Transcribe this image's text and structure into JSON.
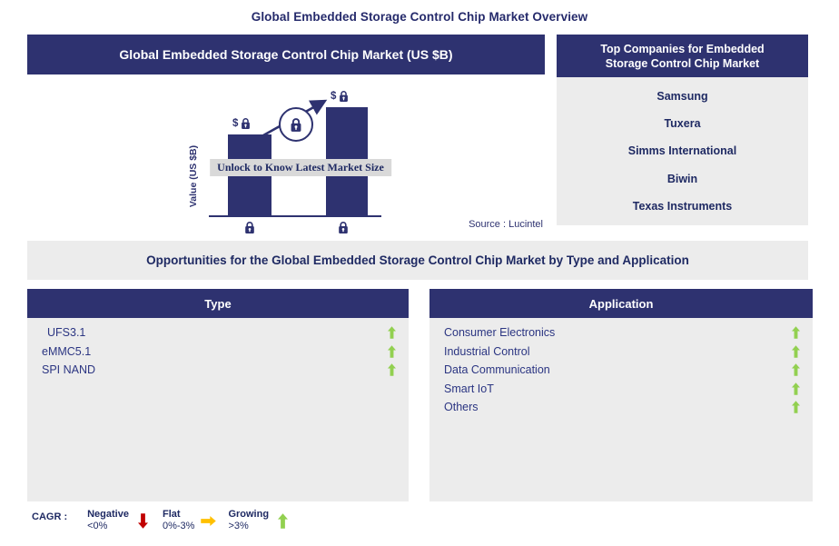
{
  "page": {
    "title": "Global Embedded Storage Control Chip Market Overview"
  },
  "market_chart": {
    "header": "Global Embedded Storage Control Chip Market (US $B)",
    "ylabel": "Value (US $B)",
    "locked_value_label": "$",
    "ribbon": "Unlock to Know Latest Market Size",
    "source": "Source : Lucintel"
  },
  "chart_data": {
    "type": "bar",
    "title": "Global Embedded Storage Control Chip Market (US $B)",
    "ylabel": "Value (US $B)",
    "categories": [
      "(locked)",
      "(locked)"
    ],
    "values": [
      null,
      null
    ],
    "values_hidden": true,
    "relative_heights": [
      0.75,
      1.0
    ],
    "trend": "up",
    "annotation": "Unlock to Know Latest Market Size",
    "source": "Source : Lucintel"
  },
  "top_companies": {
    "header_line1": "Top Companies for Embedded",
    "header_line2": "Storage Control Chip Market",
    "companies": [
      "Samsung",
      "Tuxera",
      "Simms International",
      "Biwin",
      "Texas Instruments"
    ]
  },
  "opportunities_banner": "Opportunities for the Global Embedded Storage Control Chip Market by Type and Application",
  "type_panel": {
    "header": "Type",
    "items": [
      {
        "label": "UFS3.1",
        "trend": "growing",
        "indent": true
      },
      {
        "label": "eMMC5.1",
        "trend": "growing",
        "indent": false
      },
      {
        "label": "SPI NAND",
        "trend": "growing",
        "indent": false
      }
    ]
  },
  "application_panel": {
    "header": "Application",
    "items": [
      {
        "label": "Consumer Electronics",
        "trend": "growing",
        "indent": false
      },
      {
        "label": "Industrial Control",
        "trend": "growing",
        "indent": false
      },
      {
        "label": "Data Communication",
        "trend": "growing",
        "indent": false
      },
      {
        "label": "Smart IoT",
        "trend": "growing",
        "indent": false
      },
      {
        "label": "Others",
        "trend": "growing",
        "indent": false
      }
    ]
  },
  "legend": {
    "label": "CAGR :",
    "entries": [
      {
        "name": "Negative",
        "range": "<0%",
        "arrow": "down",
        "color": "#C00000"
      },
      {
        "name": "Flat",
        "range": "0%-3%",
        "arrow": "right",
        "color": "#FFC000"
      },
      {
        "name": "Growing",
        "range": ">3%",
        "arrow": "up",
        "color": "#92D050"
      }
    ]
  },
  "colors": {
    "navy": "#2E3270",
    "text_navy": "#1F2A63",
    "panel_gray": "#ECECEC",
    "ribbon_gray": "#D9D9D9",
    "growing_green": "#92D050",
    "negative_red": "#C00000",
    "flat_amber": "#FFC000"
  }
}
